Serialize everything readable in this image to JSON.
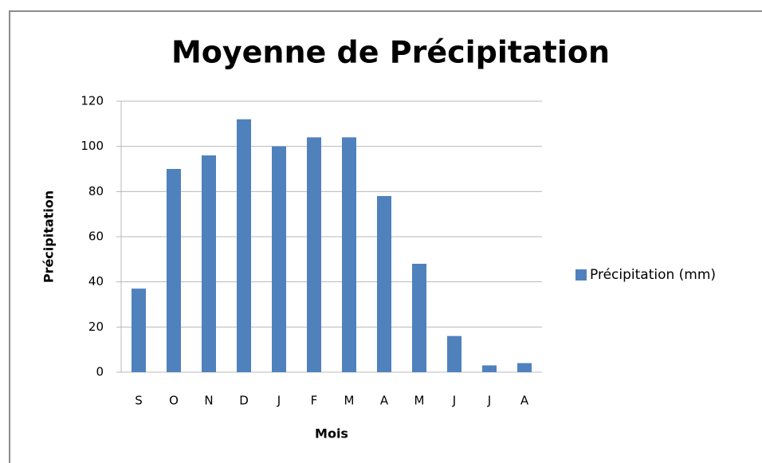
{
  "chart_data": {
    "type": "bar",
    "title": "Moyenne de Précipitation",
    "x_label": "Mois",
    "y_label": "Précipitation",
    "categories": [
      "S",
      "O",
      "N",
      "D",
      "J",
      "F",
      "M",
      "A",
      "M",
      "J",
      "J",
      "A"
    ],
    "series": [
      {
        "name": "Précipitation (mm)",
        "color": "#4f81bd",
        "values": [
          37,
          90,
          96,
          112,
          100,
          104,
          104,
          78,
          48,
          16,
          3,
          4
        ]
      }
    ],
    "ylim": [
      0,
      120
    ],
    "yticks": [
      0,
      20,
      40,
      60,
      80,
      100,
      120
    ],
    "grid": true,
    "legend": "right"
  }
}
